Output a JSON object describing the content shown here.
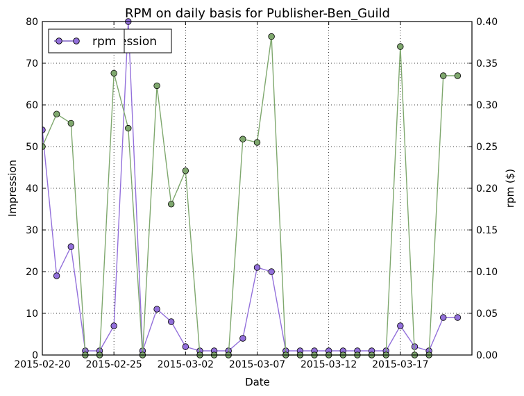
{
  "chart_data": {
    "type": "line",
    "title": "RPM on daily basis for Publisher-Ben_Guild",
    "xlabel": "Date",
    "ylabel_left": "Impression",
    "ylabel_right": "rpm ($)",
    "x_start": "2015-02-20",
    "x_end": "2015-03-22",
    "x_tick_labels": [
      "2015-02-20",
      "2015-02-25",
      "2015-03-02",
      "2015-03-07",
      "2015-03-12",
      "2015-03-17"
    ],
    "ylim_left": [
      0,
      80
    ],
    "ylim_right": [
      0,
      0.4
    ],
    "y_left_ticks": [
      "0",
      "10",
      "20",
      "30",
      "40",
      "50",
      "60",
      "70",
      "80"
    ],
    "y_right_ticks": [
      "0.00",
      "0.05",
      "0.10",
      "0.15",
      "0.20",
      "0.25",
      "0.30",
      "0.35",
      "0.40"
    ],
    "grid": true,
    "legend_position": "top-left",
    "dates": [
      "2015-02-20",
      "2015-02-21",
      "2015-02-22",
      "2015-02-23",
      "2015-02-24",
      "2015-02-25",
      "2015-02-26",
      "2015-02-27",
      "2015-02-28",
      "2015-03-01",
      "2015-03-02",
      "2015-03-03",
      "2015-03-04",
      "2015-03-05",
      "2015-03-06",
      "2015-03-07",
      "2015-03-08",
      "2015-03-09",
      "2015-03-10",
      "2015-03-11",
      "2015-03-12",
      "2015-03-13",
      "2015-03-14",
      "2015-03-15",
      "2015-03-16",
      "2015-03-17",
      "2015-03-18",
      "2015-03-19",
      "2015-03-20",
      "2015-03-21"
    ],
    "series": [
      {
        "name": "Impression",
        "axis": "left",
        "color": "#9370db",
        "values": [
          54,
          19,
          26,
          1,
          1,
          7,
          80,
          1,
          11,
          8,
          2,
          1,
          1,
          1,
          4,
          21,
          20,
          1,
          1,
          1,
          1,
          1,
          1,
          1,
          1,
          7,
          2,
          1,
          9,
          9
        ]
      },
      {
        "name": "rpm",
        "axis": "right",
        "color": "#7fa86e",
        "values": [
          0.25,
          0.289,
          0.278,
          0,
          0,
          0.338,
          0.272,
          0,
          0.323,
          0.181,
          0.221,
          0,
          0,
          0,
          0.259,
          0.255,
          0.382,
          0,
          0,
          0,
          0,
          0,
          0,
          0,
          0,
          0.37,
          0,
          0,
          0.335,
          0.335
        ]
      }
    ],
    "legend_entries": [
      "rpm",
      "Impression"
    ]
  }
}
